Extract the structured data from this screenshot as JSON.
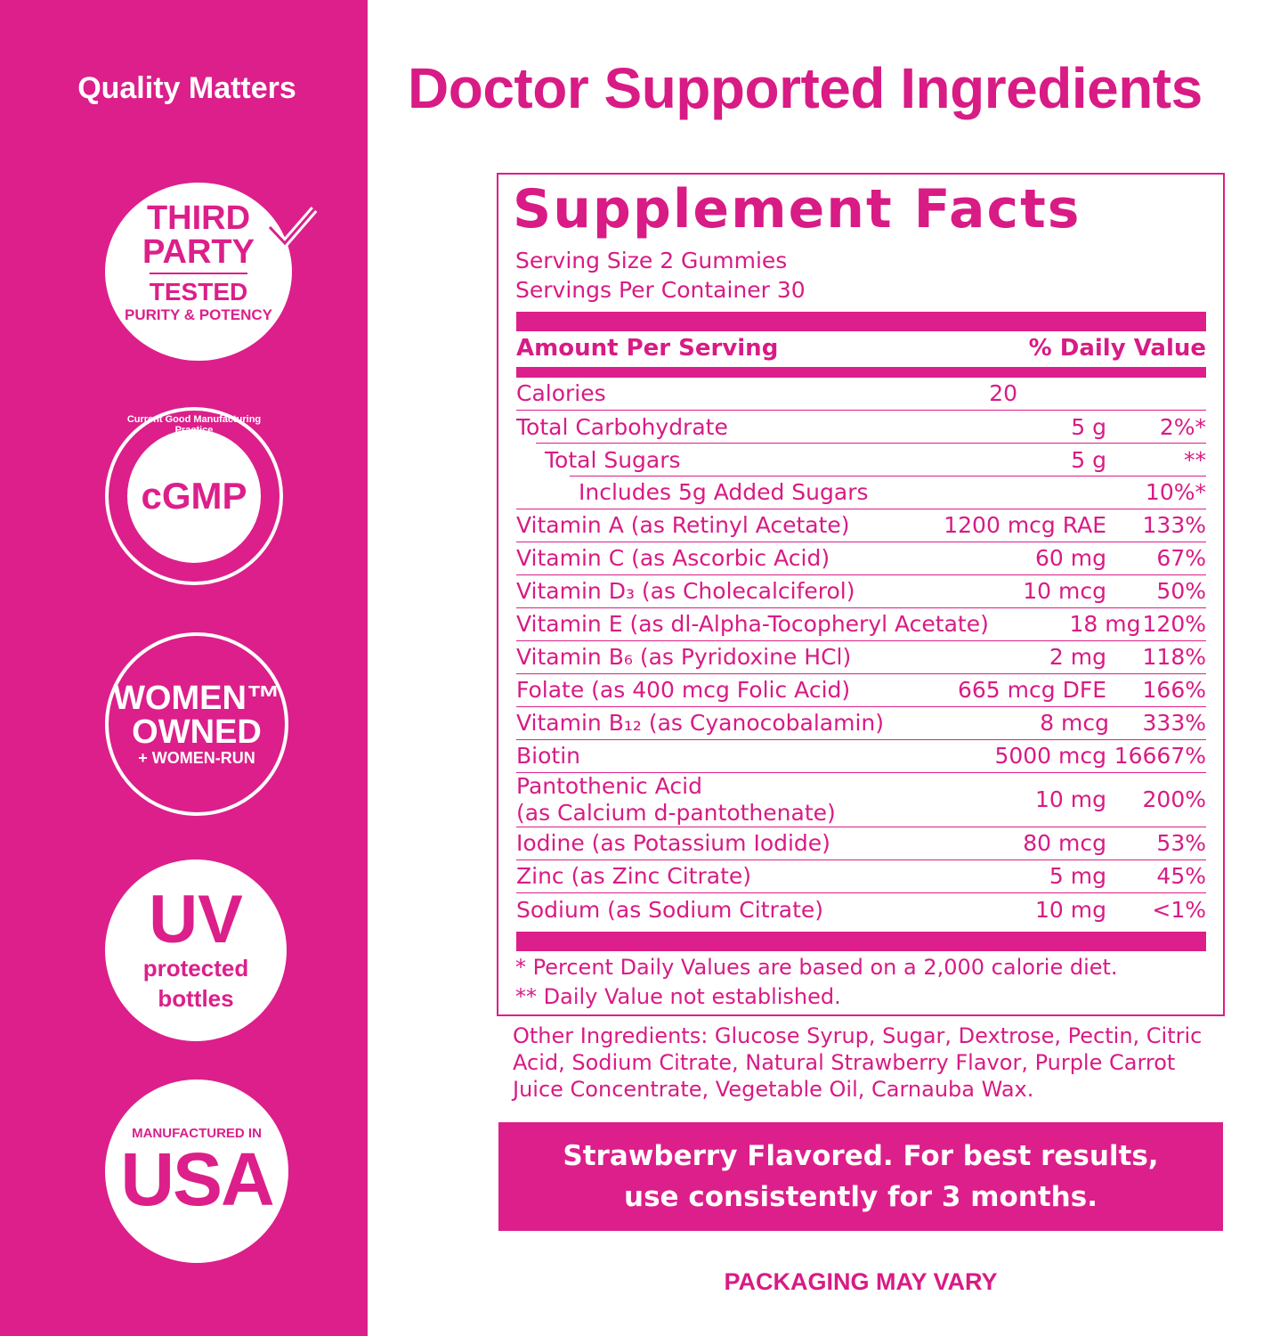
{
  "sidebar": {
    "heading": "Quality Matters",
    "badges": [
      {
        "lines": [
          "THIRD",
          "PARTY",
          "TESTED"
        ],
        "arc": "PURITY & POTENCY",
        "icon": "checkmark-icon"
      },
      {
        "center": "cGMP",
        "arc": "Current Good Manufacturing Practice"
      },
      {
        "lines": [
          "WOMEN™",
          "OWNED",
          "+ WOMEN-RUN"
        ]
      },
      {
        "lines": [
          "UV",
          "protected",
          "bottles"
        ]
      },
      {
        "lines": [
          "MANUFACTURED IN",
          "USA"
        ]
      }
    ]
  },
  "title": "Doctor Supported Ingredients",
  "facts": {
    "heading": "Supplement Facts",
    "serving_size": "Serving Size 2 Gummies",
    "servings_per_container": "Servings Per Container 30",
    "col_amount": "Amount Per Serving",
    "col_dv": "% Daily Value",
    "rows": [
      {
        "name": "Calories",
        "amount": "20",
        "dv": ""
      },
      {
        "name": "Total Carbohydrate",
        "amount": "5 g",
        "dv": "2%*"
      },
      {
        "name": "Total Sugars",
        "amount": "5 g",
        "dv": "**"
      },
      {
        "name": "Includes 5g Added Sugars",
        "amount": "",
        "dv": "10%*"
      },
      {
        "name": "Vitamin A (as Retinyl Acetate)",
        "amount": "1200 mcg RAE",
        "dv": "133%"
      },
      {
        "name": "Vitamin C (as Ascorbic Acid)",
        "amount": "60 mg",
        "dv": "67%"
      },
      {
        "name": "Vitamin D₃ (as Cholecalciferol)",
        "amount": "10 mcg",
        "dv": "50%"
      },
      {
        "name": "Vitamin E (as dl-Alpha-Tocopheryl Acetate)",
        "amount": "18 mg",
        "dv": "120%"
      },
      {
        "name": "Vitamin B₆ (as Pyridoxine HCl)",
        "amount": "2 mg",
        "dv": "118%"
      },
      {
        "name": "Folate (as 400 mcg Folic Acid)",
        "amount": "665 mcg DFE",
        "dv": "166%"
      },
      {
        "name": "Vitamin B₁₂ (as Cyanocobalamin)",
        "amount": "8 mcg",
        "dv": "333%"
      },
      {
        "name": "Biotin",
        "amount": "5000 mcg",
        "dv": "16667%"
      },
      {
        "name": "Pantothenic Acid",
        "name2": "(as Calcium d-pantothenate)",
        "amount": "10 mg",
        "dv": "200%"
      },
      {
        "name": "Iodine (as Potassium Iodide)",
        "amount": "80 mcg",
        "dv": "53%"
      },
      {
        "name": "Zinc (as Zinc Citrate)",
        "amount": "5 mg",
        "dv": "45%"
      },
      {
        "name": "Sodium (as Sodium Citrate)",
        "amount": "10 mg",
        "dv": "<1%"
      }
    ],
    "footnote1": "* Percent Daily Values are based on a 2,000 calorie diet.",
    "footnote2": "** Daily Value not established."
  },
  "other_ingredients": "Other Ingredients: Glucose Syrup, Sugar, Dextrose, Pectin, Citric Acid, Sodium Citrate, Natural Strawberry Flavor, Purple Carrot Juice Concentrate, Vegetable Oil, Carnauba Wax.",
  "cta": "Strawberry Flavored. For best results, use consistently for 3 months.",
  "packaging_note": "PACKAGING MAY VARY",
  "colors": {
    "brand_pink": "#dc1f8a",
    "background": "#ffffff"
  }
}
